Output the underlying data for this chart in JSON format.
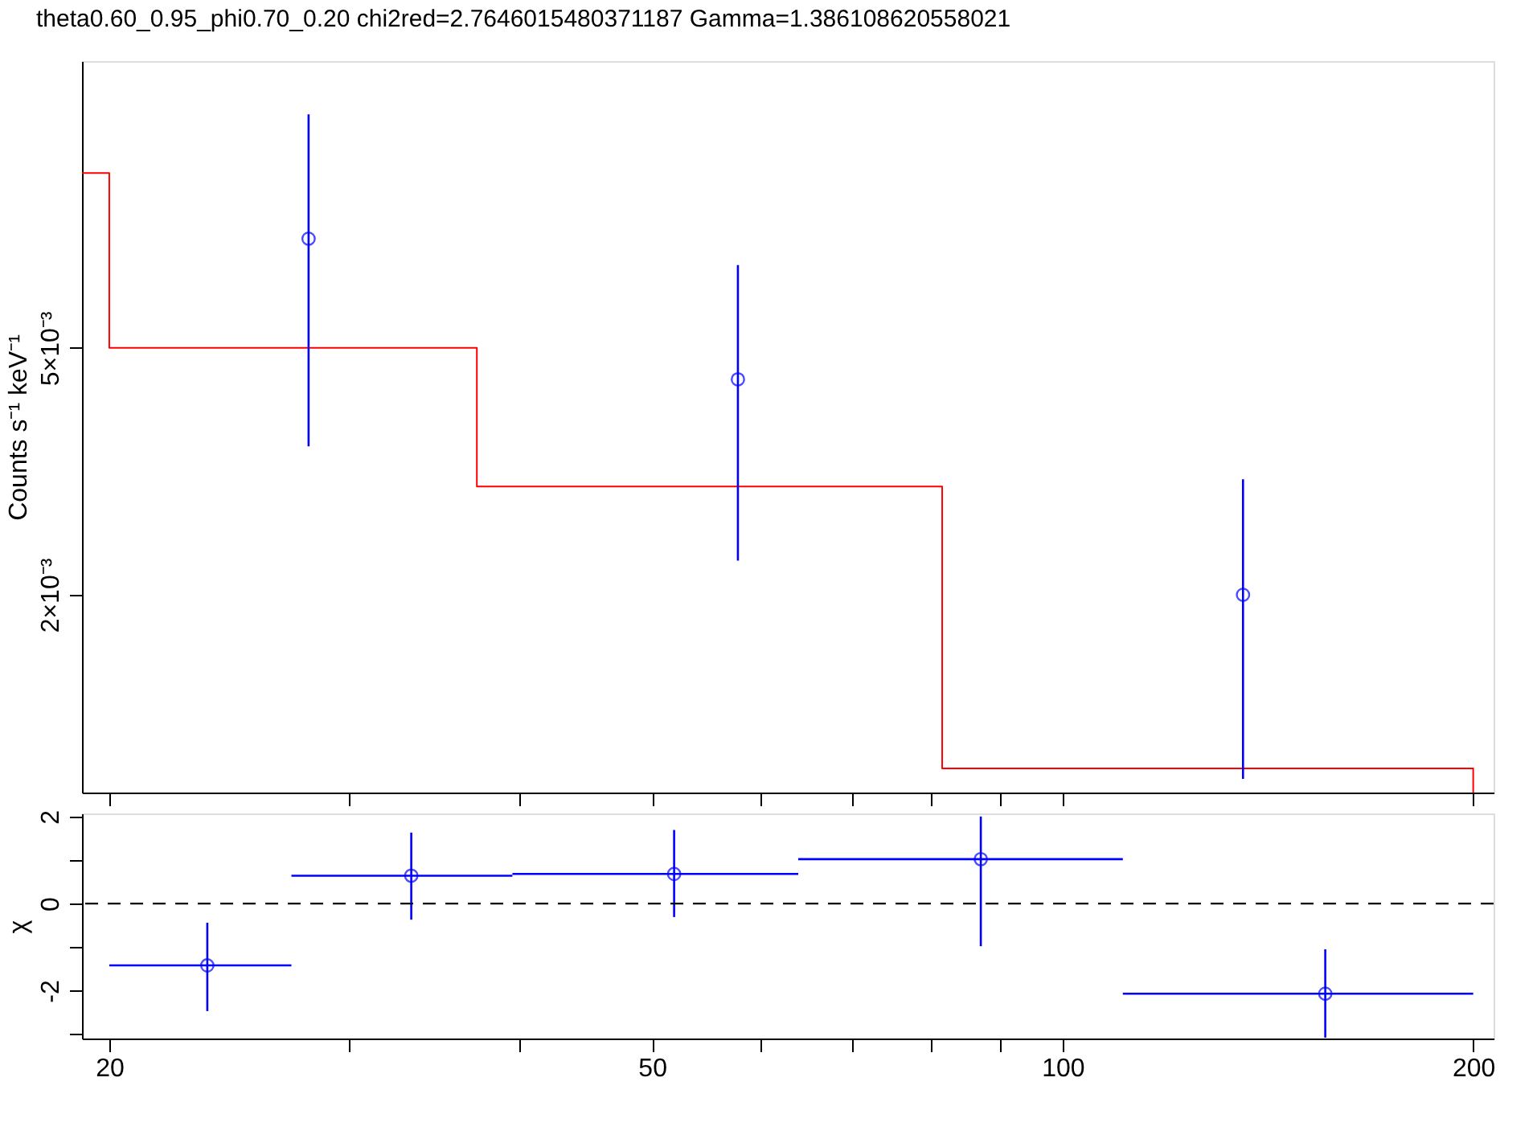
{
  "chart_data": [
    {
      "type": "scatter",
      "title": "theta0.60_0.95_phi0.70_0.20   chi2red=2.7646015480371187   Gamma=1.386108620558021",
      "ylabel": "Counts s⁻¹ keV⁻¹",
      "log": "xy",
      "tick_labels": "y",
      "xlim": [
        19.1,
        207
      ],
      "xticks": [
        {
          "value": 20,
          "label": null
        },
        {
          "value": 30,
          "label": null
        },
        {
          "value": 40,
          "label": null
        },
        {
          "value": 50,
          "label": null
        },
        {
          "value": 60,
          "label": null
        },
        {
          "value": 70,
          "label": null
        },
        {
          "value": 80,
          "label": null
        },
        {
          "value": 90,
          "label": null
        },
        {
          "value": 100,
          "label": null
        },
        {
          "value": 200,
          "label": null
        }
      ],
      "ylim": [
        0.00096,
        0.0145
      ],
      "yticks": [
        {
          "value": 0.002,
          "label": "2×10⁻³"
        },
        {
          "value": 0.005,
          "label": "5×10⁻³"
        }
      ],
      "series": [
        {
          "type": "step",
          "color": "#ff0000",
          "x": [
            19.1,
            20,
            37.2,
            81.6,
            200
          ],
          "values": [
            0.00957,
            0.005,
            0.00299,
            0.00105,
            0.00096
          ]
        },
        {
          "type": "scatter",
          "color": "#0000ff",
          "marker": "circle",
          "x": [
            28.0,
            57.8,
            135.6
          ],
          "values": [
            0.0075,
            0.00445,
            0.002
          ],
          "errors": [
            [
              0.00347,
              0.0119
            ],
            [
              0.00227,
              0.0068
            ],
            [
              0.00101,
              0.00307
            ]
          ]
        }
      ]
    },
    {
      "type": "scatter",
      "xlabel": null,
      "ylabel": "χ",
      "log": "x",
      "marker": "circle",
      "xlim": [
        19.1,
        207
      ],
      "xticks": [
        20,
        {
          "value": 30,
          "label": null
        },
        {
          "value": 40,
          "label": null
        },
        50,
        {
          "value": 60,
          "label": null
        },
        {
          "value": 70,
          "label": null
        },
        {
          "value": 80,
          "label": null
        },
        {
          "value": 90,
          "label": null
        },
        100,
        200
      ],
      "ylim": [
        -3.1,
        2.07
      ],
      "yticks": [
        {
          "value": -3,
          "label": null
        },
        -2,
        {
          "value": -1,
          "label": null
        },
        0,
        {
          "value": 1,
          "label": null
        },
        2
      ],
      "ref_lines": [
        {
          "axis": "y",
          "value": 0,
          "color": "#000000",
          "line_style": "dashed"
        }
      ],
      "series": [
        {
          "type": "scatter",
          "color": "#0000ff",
          "x": [
            23.6,
            33.3,
            51.9,
            87.1,
            155.8
          ],
          "values": [
            -1.42,
            0.64,
            0.68,
            1.02,
            -2.07
          ],
          "errors": [
            [
              -2.47,
              -0.44
            ],
            [
              -0.37,
              1.63
            ],
            [
              -0.31,
              1.69
            ],
            [
              -0.98,
              2.0
            ],
            [
              -3.08,
              -1.05
            ]
          ],
          "xerrors": [
            [
              20,
              27.2
            ],
            [
              27.2,
              39.5
            ],
            [
              39.5,
              64.0
            ],
            [
              64.0,
              110.7
            ],
            [
              110.7,
              200
            ]
          ]
        }
      ]
    }
  ]
}
